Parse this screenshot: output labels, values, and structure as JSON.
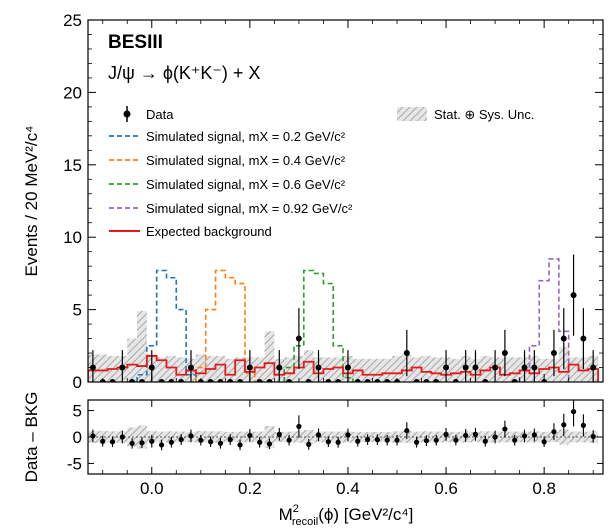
{
  "chart_data": [
    {
      "type": "histogram",
      "panel": "main",
      "ylabel": "Events / 20 MeV²/c⁴",
      "ylim": [
        0,
        25
      ],
      "xlim": [
        -0.13,
        0.92
      ],
      "yticks": [
        "0",
        "5",
        "10",
        "15",
        "20",
        "25"
      ],
      "experiment_label": "BESIII",
      "process_label": "J/ψ → ϕ(K⁺K⁻) + X",
      "legend": {
        "data": "Data",
        "signal_02": "Simulated signal, mX = 0.2 GeV/c²",
        "signal_04": "Simulated signal, mX = 0.4 GeV/c²",
        "signal_06": "Simulated signal, mX = 0.6 GeV/c²",
        "signal_092": "Simulated signal, mX = 0.92 GeV/c²",
        "background": "Expected background",
        "uncertainty": "Stat. ⊕ Sys. Unc."
      },
      "bin_width": 0.02,
      "data_points": {
        "x": [
          -0.12,
          -0.1,
          -0.08,
          -0.06,
          -0.04,
          -0.02,
          0.0,
          0.02,
          0.04,
          0.06,
          0.08,
          0.1,
          0.12,
          0.14,
          0.16,
          0.18,
          0.2,
          0.22,
          0.24,
          0.26,
          0.28,
          0.3,
          0.32,
          0.34,
          0.36,
          0.38,
          0.4,
          0.42,
          0.44,
          0.46,
          0.48,
          0.5,
          0.52,
          0.54,
          0.56,
          0.58,
          0.6,
          0.62,
          0.64,
          0.66,
          0.68,
          0.7,
          0.72,
          0.74,
          0.76,
          0.78,
          0.8,
          0.82,
          0.84,
          0.86,
          0.88,
          0.9
        ],
        "y": [
          1,
          0,
          0,
          1,
          0,
          0,
          1,
          0,
          0,
          0,
          1,
          0,
          0,
          0,
          0,
          0,
          1,
          0,
          0,
          1,
          0,
          3,
          0,
          1,
          0,
          0,
          1,
          0,
          0,
          0,
          0,
          0,
          2,
          0,
          0,
          0,
          1,
          0,
          1,
          1,
          0,
          1,
          2,
          0,
          1,
          1,
          0,
          2,
          3,
          6,
          3,
          1
        ],
        "yerr": [
          1.2,
          0,
          0,
          1.2,
          0,
          0,
          1.2,
          0,
          0,
          0,
          1.2,
          0,
          0,
          0,
          0,
          0,
          1.2,
          0,
          0,
          1.2,
          0,
          2.1,
          0,
          1.2,
          0,
          0,
          1.2,
          0,
          0,
          0,
          0,
          0,
          1.6,
          0,
          0,
          0,
          1.2,
          0,
          1.2,
          1.2,
          0,
          1.2,
          1.6,
          0,
          1.2,
          1.2,
          0,
          1.6,
          2.1,
          2.8,
          2.1,
          1.2
        ]
      },
      "background": [
        0.8,
        0.8,
        0.9,
        1.0,
        1.2,
        1.1,
        1.8,
        1.5,
        1.0,
        0.5,
        0.8,
        0.6,
        0.9,
        1.2,
        0.5,
        1.5,
        0.7,
        1.0,
        1.3,
        0.5,
        0.6,
        1.0,
        1.4,
        0.6,
        0.9,
        1.0,
        0.6,
        0.8,
        0.5,
        0.5,
        0.6,
        0.6,
        0.8,
        1.0,
        0.7,
        0.6,
        0.5,
        0.6,
        0.7,
        0.5,
        0.8,
        1.0,
        0.5,
        0.6,
        0.8,
        0.6,
        0.9,
        1.0,
        0.7,
        1.2,
        0.8,
        0.9
      ],
      "uncertainty_bands": [
        1.9,
        1.9,
        1.8,
        1.8,
        3.0,
        4.9,
        1.9,
        1.7,
        1.8,
        1.7,
        1.6,
        1.9,
        1.8,
        1.8,
        1.6,
        1.7,
        1.7,
        1.7,
        3.5,
        1.6,
        1.7,
        1.8,
        2.2,
        1.7,
        1.7,
        1.7,
        1.8,
        1.6,
        1.6,
        1.6,
        1.6,
        1.8,
        1.9,
        1.7,
        1.8,
        1.7,
        1.7,
        1.6,
        1.8,
        1.6,
        1.8,
        1.7,
        1.7,
        1.7,
        1.7,
        1.8,
        1.6,
        1.6,
        2.4,
        1.7,
        1.7,
        1.8
      ],
      "signals": [
        {
          "name": "mX = 0.2 GeV/c²",
          "color": "#1f77b4",
          "bins": [
            [
              -0.02,
              0.5
            ],
            [
              0.0,
              2.5
            ],
            [
              0.02,
              7.7
            ],
            [
              0.04,
              7.2
            ],
            [
              0.06,
              5.0
            ],
            [
              0.08,
              0.5
            ]
          ]
        },
        {
          "name": "mX = 0.4 GeV/c²",
          "color": "#ff7f0e",
          "bins": [
            [
              0.1,
              1.0
            ],
            [
              0.12,
              5.0
            ],
            [
              0.14,
              7.7
            ],
            [
              0.16,
              7.2
            ],
            [
              0.18,
              6.8
            ],
            [
              0.2,
              0.6
            ]
          ]
        },
        {
          "name": "mX = 0.6 GeV/c²",
          "color": "#2ca02c",
          "bins": [
            [
              0.28,
              1.0
            ],
            [
              0.3,
              2.5
            ],
            [
              0.32,
              7.7
            ],
            [
              0.34,
              7.5
            ],
            [
              0.36,
              6.8
            ],
            [
              0.38,
              2.5
            ],
            [
              0.4,
              0.3
            ]
          ]
        },
        {
          "name": "mX = 0.92 GeV/c²",
          "color": "#9467bd",
          "bins": [
            [
              0.76,
              0.8
            ],
            [
              0.78,
              2.5
            ],
            [
              0.8,
              7.0
            ],
            [
              0.82,
              8.5
            ],
            [
              0.84,
              3.5
            ]
          ]
        }
      ]
    },
    {
      "type": "scatter",
      "panel": "residual",
      "ylabel": "Data – BKG",
      "xlabel": "M²recoil(ϕ) [GeV²/c⁴]",
      "xlabel_main": "M",
      "xlabel_sup": "2",
      "xlabel_sub": "recoil",
      "xlabel_rest": "(ϕ) [GeV²/c⁴]",
      "ylim": [
        -7,
        7
      ],
      "yticks": [
        "-5",
        "0",
        "5"
      ],
      "xticks": [
        "0.0",
        "0.2",
        "0.4",
        "0.6",
        "0.8"
      ],
      "xtick_values": [
        0.0,
        0.2,
        0.4,
        0.6,
        0.8
      ]
    }
  ]
}
